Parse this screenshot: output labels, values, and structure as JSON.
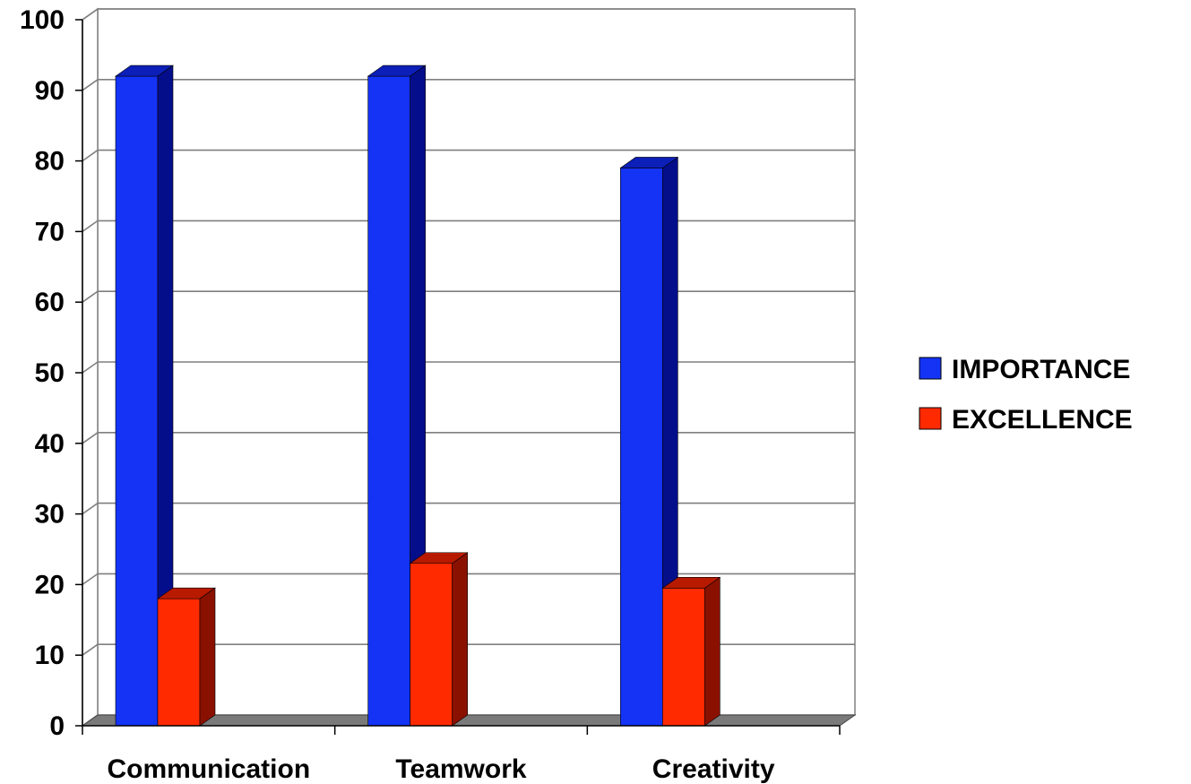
{
  "chart_data": {
    "type": "bar",
    "style": "3d-clustered-column",
    "categories": [
      "Communication",
      "Teamwork",
      "Creativity"
    ],
    "series": [
      {
        "name": "IMPORTANCE",
        "values": [
          92,
          92,
          79
        ]
      },
      {
        "name": "EXCELLENCE",
        "values": [
          18,
          23,
          19.5
        ]
      }
    ],
    "ylim": [
      0,
      100
    ],
    "yticks": [
      0,
      10,
      20,
      30,
      40,
      50,
      60,
      70,
      80,
      90,
      100
    ],
    "grid": true,
    "legend_position": "right",
    "colors": {
      "IMPORTANCE": {
        "front": "#1433f5",
        "side": "#050e8a",
        "top": "#0c1fb8"
      },
      "EXCELLENCE": {
        "front": "#ff2a00",
        "side": "#8a1100",
        "top": "#b81a00"
      },
      "wall": "#ffffff",
      "gridline": "#7f7f7f",
      "floor": "#7a7a7a"
    }
  }
}
